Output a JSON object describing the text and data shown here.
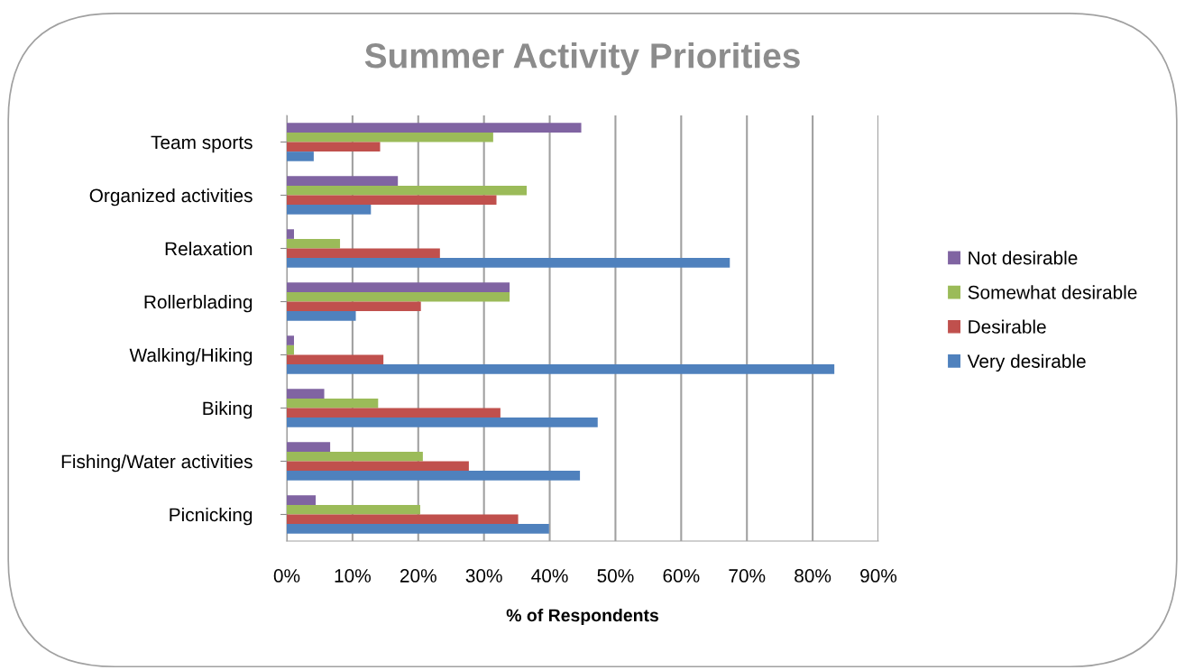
{
  "chart_data": {
    "type": "bar",
    "orientation": "horizontal",
    "title": "Summer Activity Priorities",
    "xlabel": "% of Respondents",
    "categories": [
      "Team sports",
      "Organized activities",
      "Relaxation",
      "Rollerblading",
      "Walking/Hiking",
      "Biking",
      "Fishing/Water activities",
      "Picnicking"
    ],
    "series": [
      {
        "name": "Not desirable",
        "color": "#8064a2",
        "values": [
          44.8,
          16.9,
          1.1,
          33.9,
          1.1,
          5.7,
          6.6,
          4.4
        ]
      },
      {
        "name": "Somewhat desirable",
        "color": "#9bbb59",
        "values": [
          31.4,
          36.5,
          8.1,
          33.9,
          1.1,
          13.9,
          20.7,
          20.3
        ]
      },
      {
        "name": "Desirable",
        "color": "#c0504d",
        "values": [
          14.2,
          31.9,
          23.3,
          20.4,
          14.7,
          32.5,
          27.7,
          35.2
        ]
      },
      {
        "name": "Very desirable",
        "color": "#4f81bd",
        "values": [
          4.1,
          12.8,
          67.4,
          10.5,
          83.3,
          47.3,
          44.6,
          39.9
        ]
      }
    ],
    "xlim": [
      0,
      90
    ],
    "xticks": [
      {
        "value": 0,
        "label": "0%"
      },
      {
        "value": 10,
        "label": "10%"
      },
      {
        "value": 20,
        "label": "20%"
      },
      {
        "value": 30,
        "label": "30%"
      },
      {
        "value": 40,
        "label": "40%"
      },
      {
        "value": 50,
        "label": "50%"
      },
      {
        "value": 60,
        "label": "60%"
      },
      {
        "value": 70,
        "label": "70%"
      },
      {
        "value": 80,
        "label": "80%"
      },
      {
        "value": 90,
        "label": "90%"
      }
    ],
    "grid": "x",
    "legend": "right"
  }
}
